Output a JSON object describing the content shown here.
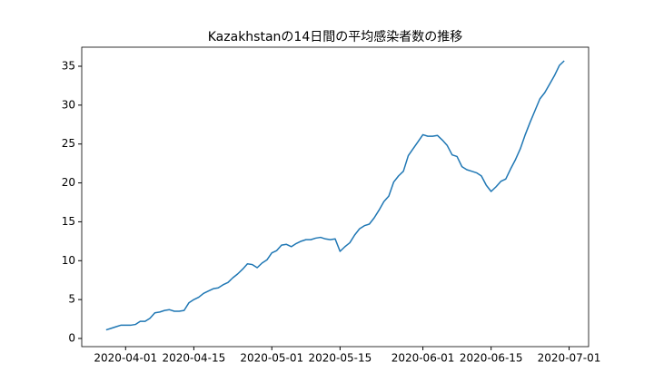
{
  "chart_data": {
    "type": "line",
    "title": "Kazakhstanの14日間の平均感染者数の推移",
    "x": [
      "2020-03-28",
      "2020-03-29",
      "2020-03-30",
      "2020-03-31",
      "2020-04-01",
      "2020-04-02",
      "2020-04-03",
      "2020-04-04",
      "2020-04-05",
      "2020-04-06",
      "2020-04-07",
      "2020-04-08",
      "2020-04-09",
      "2020-04-10",
      "2020-04-11",
      "2020-04-12",
      "2020-04-13",
      "2020-04-14",
      "2020-04-15",
      "2020-04-16",
      "2020-04-17",
      "2020-04-18",
      "2020-04-19",
      "2020-04-20",
      "2020-04-21",
      "2020-04-22",
      "2020-04-23",
      "2020-04-24",
      "2020-04-25",
      "2020-04-26",
      "2020-04-27",
      "2020-04-28",
      "2020-04-29",
      "2020-04-30",
      "2020-05-01",
      "2020-05-02",
      "2020-05-03",
      "2020-05-04",
      "2020-05-05",
      "2020-05-06",
      "2020-05-07",
      "2020-05-08",
      "2020-05-09",
      "2020-05-10",
      "2020-05-11",
      "2020-05-12",
      "2020-05-13",
      "2020-05-14",
      "2020-05-15",
      "2020-05-16",
      "2020-05-17",
      "2020-05-18",
      "2020-05-19",
      "2020-05-20",
      "2020-05-21",
      "2020-05-22",
      "2020-05-23",
      "2020-05-24",
      "2020-05-25",
      "2020-05-26",
      "2020-05-27",
      "2020-05-28",
      "2020-05-29",
      "2020-05-30",
      "2020-05-31",
      "2020-06-01",
      "2020-06-02",
      "2020-06-03",
      "2020-06-04",
      "2020-06-05",
      "2020-06-06",
      "2020-06-07",
      "2020-06-08",
      "2020-06-09",
      "2020-06-10",
      "2020-06-11",
      "2020-06-12",
      "2020-06-13",
      "2020-06-14",
      "2020-06-15",
      "2020-06-16",
      "2020-06-17",
      "2020-06-18",
      "2020-06-19",
      "2020-06-20",
      "2020-06-21",
      "2020-06-22",
      "2020-06-23",
      "2020-06-24",
      "2020-06-25",
      "2020-06-26",
      "2020-06-27",
      "2020-06-28",
      "2020-06-29",
      "2020-06-30"
    ],
    "series": [
      {
        "color": "#1f77b4",
        "values": [
          1.1,
          1.3,
          1.5,
          1.7,
          1.7,
          1.7,
          1.8,
          2.2,
          2.2,
          2.6,
          3.3,
          3.4,
          3.6,
          3.7,
          3.5,
          3.5,
          3.6,
          4.6,
          5.0,
          5.3,
          5.8,
          6.1,
          6.4,
          6.5,
          6.9,
          7.2,
          7.8,
          8.3,
          8.9,
          9.6,
          9.5,
          9.1,
          9.7,
          10.1,
          11.0,
          11.3,
          12.0,
          12.1,
          11.8,
          12.2,
          12.5,
          12.7,
          12.7,
          12.9,
          13.0,
          12.8,
          12.7,
          12.8,
          11.2,
          11.8,
          12.3,
          13.3,
          14.1,
          14.5,
          14.7,
          15.5,
          16.5,
          17.6,
          18.3,
          20.1,
          20.9,
          21.5,
          23.5,
          24.4,
          25.3,
          26.2,
          26.0,
          26.0,
          26.1,
          25.5,
          24.8,
          23.6,
          23.4,
          22.1,
          21.7,
          21.5,
          21.3,
          20.9,
          19.7,
          18.9,
          19.5,
          20.2,
          20.5,
          21.8,
          23.0,
          24.4,
          26.2,
          27.8,
          29.3,
          30.8,
          31.6,
          32.7,
          33.8,
          35.1,
          35.7
        ]
      }
    ],
    "xlim": [
      "2020-03-23",
      "2020-07-05"
    ],
    "xticks": [
      "2020-04-01",
      "2020-04-15",
      "2020-05-01",
      "2020-05-15",
      "2020-06-01",
      "2020-06-15",
      "2020-07-01"
    ],
    "ylim": [
      -1.05,
      37.45
    ],
    "yticks": [
      0,
      5,
      10,
      15,
      20,
      25,
      30,
      35
    ],
    "grid": false
  }
}
